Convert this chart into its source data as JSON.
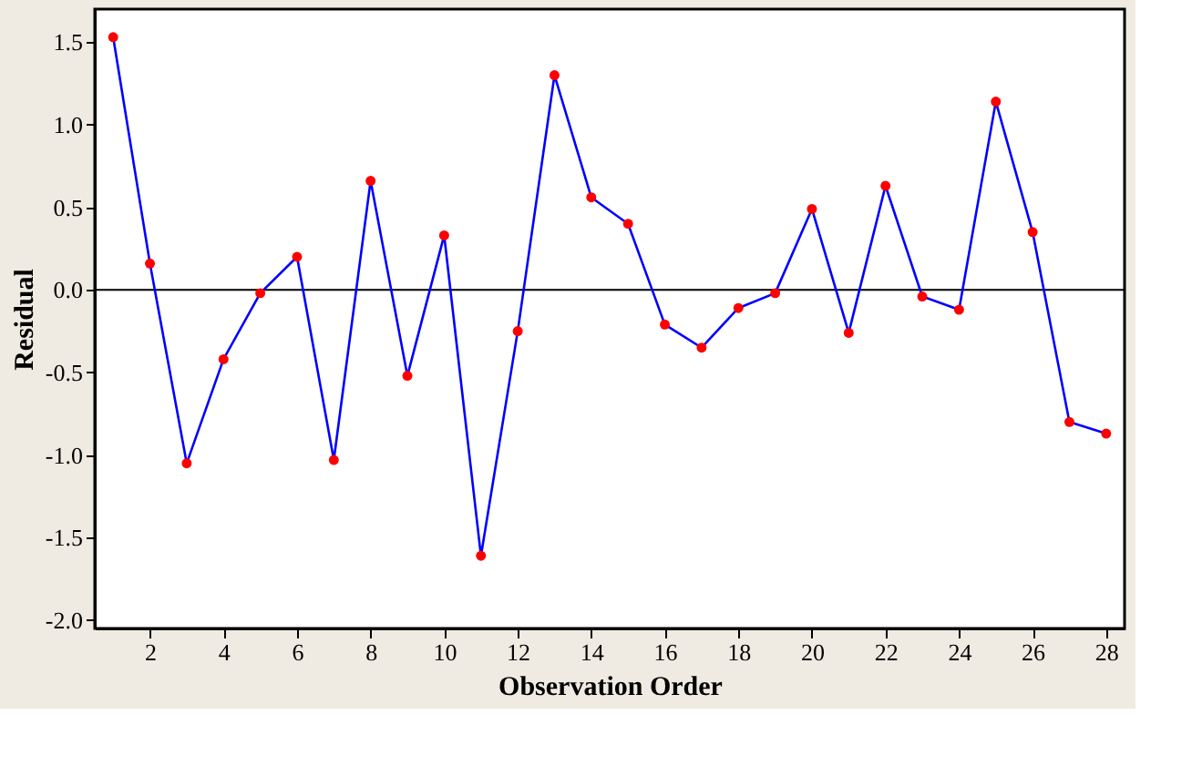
{
  "chart_data": {
    "type": "line",
    "xlabel": "Observation Order",
    "ylabel": "Residual",
    "x": [
      1,
      2,
      3,
      4,
      5,
      6,
      7,
      8,
      9,
      10,
      11,
      12,
      13,
      14,
      15,
      16,
      17,
      18,
      19,
      20,
      21,
      22,
      23,
      24,
      25,
      26,
      27,
      28
    ],
    "series": [
      {
        "color": "#0000ff",
        "colors": [
          "#ff0000",
          "#ff0000",
          "#ff0000",
          "#ff0000",
          "#ff0000",
          "#ff0000",
          "#ff0000",
          "#ff0000",
          "#ff0000",
          "#ff0000",
          "#ff0000",
          "#ff0000",
          "#ff0000",
          "#ff0000",
          "#ff0000",
          "#ff0000",
          "#ff0000",
          "#ff0000",
          "#ff0000",
          "#ff0000",
          "#ff0000",
          "#ff0000",
          "#ff0000",
          "#ff0000",
          "#ff0000",
          "#ff0000",
          "#ff0000",
          "#ff0000"
        ],
        "values": [
          1.53,
          0.16,
          -1.05,
          -0.42,
          -0.02,
          0.2,
          -1.03,
          0.66,
          -0.52,
          0.33,
          -1.61,
          -0.25,
          1.3,
          0.56,
          0.4,
          -0.21,
          -0.35,
          -0.11,
          -0.02,
          0.49,
          -0.26,
          0.63,
          -0.04,
          -0.12,
          1.14,
          0.35,
          -0.8,
          -0.87
        ]
      }
    ],
    "marker": "circle",
    "line_style": "solid",
    "xlim": [
      0.5,
      28.5
    ],
    "xticks": [
      2,
      4,
      6,
      8,
      10,
      12,
      14,
      16,
      18,
      20,
      22,
      24,
      26,
      28
    ],
    "ylim": [
      -2.05,
      1.7
    ],
    "yticks": [
      {
        "value": -2,
        "label": "-2.0"
      },
      {
        "value": -1.5,
        "label": "-1.5"
      },
      {
        "value": -1,
        "label": "-1.0"
      },
      {
        "value": -0.5,
        "label": "-0.5"
      },
      {
        "value": 0,
        "label": "0.0"
      },
      {
        "value": 0.5,
        "label": "0.5"
      },
      {
        "value": 1,
        "label": "1.0"
      },
      {
        "value": 1.5,
        "label": "1.5"
      }
    ],
    "ref_lines": [
      {
        "axis": "y",
        "value": 0,
        "color": "#000000"
      }
    ],
    "grid": false
  }
}
